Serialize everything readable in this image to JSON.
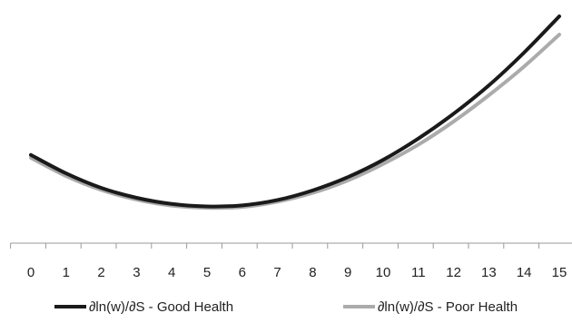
{
  "chart_data": {
    "type": "line",
    "title": "",
    "xlabel": "",
    "ylabel": "",
    "x": [
      0,
      1,
      2,
      3,
      4,
      5,
      6,
      7,
      8,
      9,
      10,
      11,
      12,
      13,
      14,
      15
    ],
    "xlim": [
      0,
      15
    ],
    "ylim": [
      0,
      100
    ],
    "grid": false,
    "y_axis_visible": false,
    "legend_position": "bottom",
    "series": [
      {
        "name": "∂ln(w)/∂S - Good Health",
        "color": "#1a1a1a",
        "values": [
          38.6,
          29.6,
          22.5,
          17.7,
          14.7,
          13.5,
          14.0,
          16.6,
          21.3,
          27.8,
          36.2,
          46.6,
          58.7,
          72.5,
          88.5,
          106.2
        ]
      },
      {
        "name": "∂ln(w)/∂S - Poor Health",
        "color": "#ababab",
        "values": [
          37.2,
          28.3,
          21.5,
          16.8,
          13.9,
          12.8,
          13.2,
          15.8,
          20.1,
          26.2,
          34.2,
          43.6,
          54.9,
          67.7,
          81.7,
          97.3
        ]
      }
    ]
  }
}
